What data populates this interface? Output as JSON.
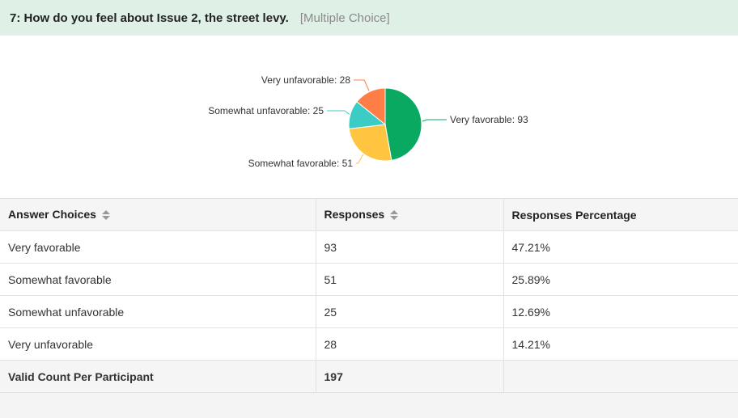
{
  "question": {
    "title": "7: How do you feel about Issue 2, the street levy.",
    "type": "[Multiple Choice]"
  },
  "chart_data": {
    "type": "pie",
    "categories": [
      "Very favorable",
      "Somewhat favorable",
      "Somewhat unfavorable",
      "Very unfavorable"
    ],
    "values": [
      93,
      51,
      25,
      28
    ],
    "colors": [
      "#0aa961",
      "#ffc540",
      "#3bcdc5",
      "#ff7d46"
    ],
    "labels": [
      "Very favorable: 93",
      "Somewhat favorable: 51",
      "Somewhat unfavorable: 25",
      "Very unfavorable: 28"
    ]
  },
  "table": {
    "headers": [
      "Answer Choices",
      "Responses",
      "Responses Percentage"
    ],
    "rows": [
      {
        "choice": "Very favorable",
        "responses": "93",
        "percentage": "47.21%"
      },
      {
        "choice": "Somewhat favorable",
        "responses": "51",
        "percentage": "25.89%"
      },
      {
        "choice": "Somewhat unfavorable",
        "responses": "25",
        "percentage": "12.69%"
      },
      {
        "choice": "Very unfavorable",
        "responses": "28",
        "percentage": "14.21%"
      }
    ],
    "total": {
      "label": "Valid Count Per Participant",
      "value": "197"
    }
  }
}
